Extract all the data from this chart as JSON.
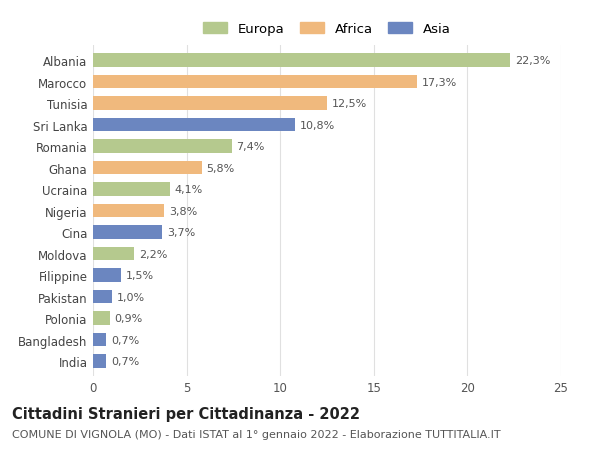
{
  "countries": [
    "Albania",
    "Marocco",
    "Tunisia",
    "Sri Lanka",
    "Romania",
    "Ghana",
    "Ucraina",
    "Nigeria",
    "Cina",
    "Moldova",
    "Filippine",
    "Pakistan",
    "Polonia",
    "Bangladesh",
    "India"
  ],
  "values": [
    22.3,
    17.3,
    12.5,
    10.8,
    7.4,
    5.8,
    4.1,
    3.8,
    3.7,
    2.2,
    1.5,
    1.0,
    0.9,
    0.7,
    0.7
  ],
  "labels": [
    "22,3%",
    "17,3%",
    "12,5%",
    "10,8%",
    "7,4%",
    "5,8%",
    "4,1%",
    "3,8%",
    "3,7%",
    "2,2%",
    "1,5%",
    "1,0%",
    "0,9%",
    "0,7%",
    "0,7%"
  ],
  "continents": [
    "Europa",
    "Africa",
    "Africa",
    "Asia",
    "Europa",
    "Africa",
    "Europa",
    "Africa",
    "Asia",
    "Europa",
    "Asia",
    "Asia",
    "Europa",
    "Asia",
    "Asia"
  ],
  "colors": {
    "Europa": "#b5c98e",
    "Africa": "#f0b97d",
    "Asia": "#6b86c0"
  },
  "legend_order": [
    "Europa",
    "Africa",
    "Asia"
  ],
  "xlim": [
    0,
    25
  ],
  "xticks": [
    0,
    5,
    10,
    15,
    20,
    25
  ],
  "title": "Cittadini Stranieri per Cittadinanza - 2022",
  "subtitle": "COMUNE DI VIGNOLA (MO) - Dati ISTAT al 1° gennaio 2022 - Elaborazione TUTTITALIA.IT",
  "background_color": "#ffffff",
  "grid_color": "#e0e0e0",
  "bar_height": 0.62,
  "title_fontsize": 10.5,
  "subtitle_fontsize": 8.0,
  "label_fontsize": 8.0,
  "tick_fontsize": 8.5,
  "legend_fontsize": 9.5
}
